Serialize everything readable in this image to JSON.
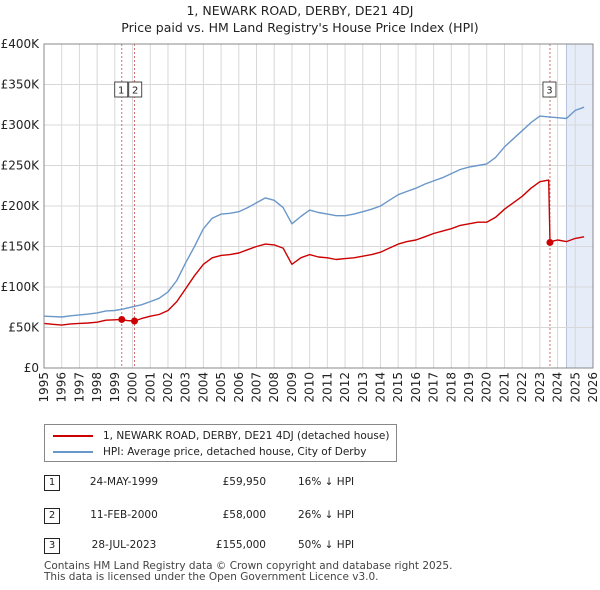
{
  "chart_data": {
    "type": "line",
    "title": "1, NEWARK ROAD, DERBY, DE21 4DJ",
    "subtitle": "Price paid vs. HM Land Registry's House Price Index (HPI)",
    "xlim": [
      1995,
      2026
    ],
    "ylim": [
      0,
      400000
    ],
    "x_ticks": [
      "1995",
      "1996",
      "1997",
      "1998",
      "1999",
      "2000",
      "2001",
      "2002",
      "2003",
      "2004",
      "2005",
      "2006",
      "2007",
      "2008",
      "2009",
      "2010",
      "2011",
      "2012",
      "2013",
      "2014",
      "2015",
      "2016",
      "2017",
      "2018",
      "2019",
      "2020",
      "2021",
      "2022",
      "2023",
      "2024",
      "2025",
      "2026"
    ],
    "y_ticks": [
      {
        "value": 0,
        "label": "£0"
      },
      {
        "value": 50000,
        "label": "£50K"
      },
      {
        "value": 100000,
        "label": "£100K"
      },
      {
        "value": 150000,
        "label": "£150K"
      },
      {
        "value": 200000,
        "label": "£200K"
      },
      {
        "value": 250000,
        "label": "£250K"
      },
      {
        "value": 300000,
        "label": "£300K"
      },
      {
        "value": 350000,
        "label": "£350K"
      },
      {
        "value": 400000,
        "label": "£400K"
      }
    ],
    "grid": true,
    "forecast_shading_from": 2024.5,
    "series": [
      {
        "name": "1, NEWARK ROAD, DERBY, DE21 4DJ (detached house)",
        "color": "#cc0000",
        "points": [
          [
            1995.0,
            55000
          ],
          [
            1995.5,
            54000
          ],
          [
            1996.0,
            53000
          ],
          [
            1996.5,
            54500
          ],
          [
            1997.0,
            55000
          ],
          [
            1997.5,
            55500
          ],
          [
            1998.0,
            56500
          ],
          [
            1998.5,
            59000
          ],
          [
            1999.0,
            59500
          ],
          [
            1999.39,
            59950
          ],
          [
            1999.7,
            58500
          ],
          [
            2000.11,
            58000
          ],
          [
            2000.5,
            61000
          ],
          [
            2001.0,
            64000
          ],
          [
            2001.5,
            66000
          ],
          [
            2002.0,
            71000
          ],
          [
            2002.5,
            82000
          ],
          [
            2003.0,
            98000
          ],
          [
            2003.5,
            114000
          ],
          [
            2004.0,
            128000
          ],
          [
            2004.5,
            136000
          ],
          [
            2005.0,
            139000
          ],
          [
            2005.5,
            140000
          ],
          [
            2006.0,
            142000
          ],
          [
            2006.5,
            146000
          ],
          [
            2007.0,
            150000
          ],
          [
            2007.5,
            153000
          ],
          [
            2008.0,
            152000
          ],
          [
            2008.5,
            148000
          ],
          [
            2009.0,
            128000
          ],
          [
            2009.5,
            136000
          ],
          [
            2010.0,
            140000
          ],
          [
            2010.5,
            137000
          ],
          [
            2011.0,
            136000
          ],
          [
            2011.5,
            134000
          ],
          [
            2012.0,
            135000
          ],
          [
            2012.5,
            136000
          ],
          [
            2013.0,
            138000
          ],
          [
            2013.5,
            140000
          ],
          [
            2014.0,
            143000
          ],
          [
            2014.5,
            148000
          ],
          [
            2015.0,
            153000
          ],
          [
            2015.5,
            156000
          ],
          [
            2016.0,
            158000
          ],
          [
            2016.5,
            162000
          ],
          [
            2017.0,
            166000
          ],
          [
            2017.5,
            169000
          ],
          [
            2018.0,
            172000
          ],
          [
            2018.5,
            176000
          ],
          [
            2019.0,
            178000
          ],
          [
            2019.5,
            180000
          ],
          [
            2020.0,
            180000
          ],
          [
            2020.5,
            186000
          ],
          [
            2021.0,
            196000
          ],
          [
            2021.5,
            204000
          ],
          [
            2022.0,
            212000
          ],
          [
            2022.5,
            222000
          ],
          [
            2023.0,
            230000
          ],
          [
            2023.5,
            232000
          ],
          [
            2023.57,
            155000
          ],
          [
            2023.8,
            157000
          ],
          [
            2024.0,
            158000
          ],
          [
            2024.5,
            156000
          ],
          [
            2025.0,
            160000
          ],
          [
            2025.5,
            162000
          ]
        ]
      },
      {
        "name": "HPI: Average price, detached house, City of Derby",
        "color": "#6a97c9",
        "points": [
          [
            1995.0,
            64000
          ],
          [
            1995.5,
            63500
          ],
          [
            1996.0,
            63000
          ],
          [
            1996.5,
            64500
          ],
          [
            1997.0,
            65500
          ],
          [
            1997.5,
            66500
          ],
          [
            1998.0,
            68000
          ],
          [
            1998.5,
            70500
          ],
          [
            1999.0,
            71000
          ],
          [
            1999.5,
            73000
          ],
          [
            2000.0,
            75500
          ],
          [
            2000.5,
            78000
          ],
          [
            2001.0,
            82000
          ],
          [
            2001.5,
            86000
          ],
          [
            2002.0,
            94000
          ],
          [
            2002.5,
            108000
          ],
          [
            2003.0,
            130000
          ],
          [
            2003.5,
            150000
          ],
          [
            2004.0,
            172000
          ],
          [
            2004.5,
            185000
          ],
          [
            2005.0,
            190000
          ],
          [
            2005.5,
            191000
          ],
          [
            2006.0,
            193000
          ],
          [
            2006.5,
            198000
          ],
          [
            2007.0,
            204000
          ],
          [
            2007.5,
            210000
          ],
          [
            2008.0,
            207000
          ],
          [
            2008.5,
            198000
          ],
          [
            2009.0,
            178000
          ],
          [
            2009.5,
            187000
          ],
          [
            2010.0,
            195000
          ],
          [
            2010.5,
            192000
          ],
          [
            2011.0,
            190000
          ],
          [
            2011.5,
            188000
          ],
          [
            2012.0,
            188000
          ],
          [
            2012.5,
            190000
          ],
          [
            2013.0,
            193000
          ],
          [
            2013.5,
            196000
          ],
          [
            2014.0,
            200000
          ],
          [
            2014.5,
            207000
          ],
          [
            2015.0,
            214000
          ],
          [
            2015.5,
            218000
          ],
          [
            2016.0,
            222000
          ],
          [
            2016.5,
            227000
          ],
          [
            2017.0,
            231000
          ],
          [
            2017.5,
            235000
          ],
          [
            2018.0,
            240000
          ],
          [
            2018.5,
            245000
          ],
          [
            2019.0,
            248000
          ],
          [
            2019.5,
            250000
          ],
          [
            2020.0,
            252000
          ],
          [
            2020.5,
            260000
          ],
          [
            2021.0,
            273000
          ],
          [
            2021.5,
            283000
          ],
          [
            2022.0,
            293000
          ],
          [
            2022.5,
            303000
          ],
          [
            2023.0,
            311000
          ],
          [
            2023.5,
            310000
          ],
          [
            2024.0,
            309000
          ],
          [
            2024.5,
            308000
          ],
          [
            2025.0,
            318000
          ],
          [
            2025.5,
            322000
          ]
        ]
      }
    ],
    "transactions": [
      {
        "num": "1",
        "x": 1999.39,
        "price": 59950,
        "date": "24-MAY-1999",
        "price_label": "£59,950",
        "hpi": "16% ↓ HPI"
      },
      {
        "num": "2",
        "x": 2000.11,
        "price": 58000,
        "date": "11-FEB-2000",
        "price_label": "£58,000",
        "hpi": "26% ↓ HPI"
      },
      {
        "num": "3",
        "x": 2023.57,
        "price": 155000,
        "date": "28-JUL-2023",
        "price_label": "£155,000",
        "hpi": "50% ↓ HPI"
      }
    ]
  },
  "legend": {
    "property_label": "1, NEWARK ROAD, DERBY, DE21 4DJ (detached house)",
    "hpi_label": "HPI: Average price, detached house, City of Derby"
  },
  "footer": {
    "line1": "Contains HM Land Registry data © Crown copyright and database right 2025.",
    "line2": "This data is licensed under the Open Government Licence v3.0."
  }
}
